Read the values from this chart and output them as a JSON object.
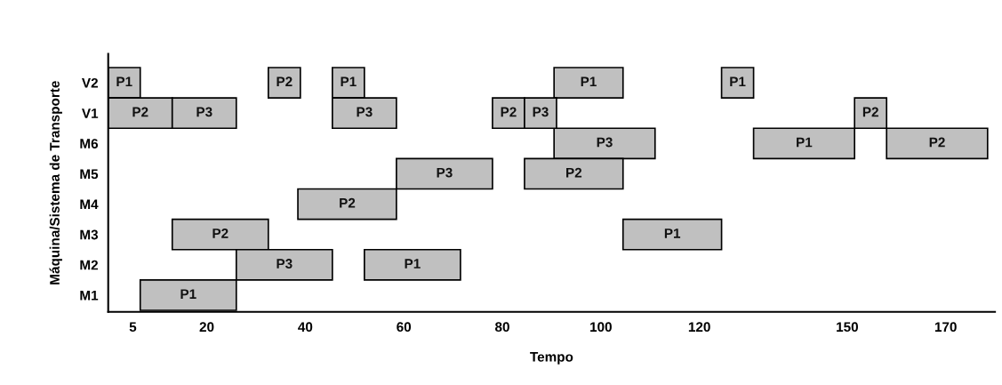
{
  "chart_data": {
    "type": "bar",
    "orientation": "horizontal",
    "xlabel": "Tempo",
    "ylabel": "Máquina/Sistema de Transporte",
    "categories": [
      "V2",
      "V1",
      "M6",
      "M5",
      "M4",
      "M3",
      "M2",
      "M1"
    ],
    "xlim": [
      0,
      180
    ],
    "xticks": [
      5,
      20,
      40,
      60,
      80,
      100,
      120,
      150,
      170
    ],
    "grid": false,
    "series": [
      {
        "color": "#c0c0c0",
        "base": [
          0,
          0,
          90.5,
          58.5,
          38.5,
          13,
          26,
          6.5
        ],
        "values": [
          6.5,
          13,
          20.5,
          19.5,
          20,
          19.5,
          19.5,
          19.5
        ],
        "value_labels": [
          "P1",
          "P2",
          "P3",
          "P3",
          "P2",
          "P2",
          "P3",
          "P1"
        ]
      },
      {
        "color": "#c0c0c0",
        "base": [
          32.5,
          13,
          131,
          84.5,
          null,
          104.5,
          52,
          null
        ],
        "values": [
          6.5,
          13,
          20.5,
          20,
          null,
          20,
          19.5,
          null
        ],
        "value_labels": [
          "P2",
          "P3",
          "P1",
          "P2",
          null,
          "P1",
          "P1",
          null
        ]
      },
      {
        "color": "#c0c0c0",
        "base": [
          45.5,
          45.5,
          158,
          null,
          null,
          null,
          null,
          null
        ],
        "values": [
          6.5,
          13,
          20.5,
          null,
          null,
          null,
          null,
          null
        ],
        "value_labels": [
          "P1",
          "P3",
          "P2",
          null,
          null,
          null,
          null,
          null
        ]
      },
      {
        "color": "#c0c0c0",
        "base": [
          90.5,
          78,
          null,
          null,
          null,
          null,
          null,
          null
        ],
        "values": [
          14,
          6.5,
          null,
          null,
          null,
          null,
          null,
          null
        ],
        "value_labels": [
          "P1",
          "P2",
          null,
          null,
          null,
          null,
          null,
          null
        ]
      },
      {
        "color": "#c0c0c0",
        "base": [
          124.5,
          84.5,
          null,
          null,
          null,
          null,
          null,
          null
        ],
        "values": [
          6.5,
          6.5,
          null,
          null,
          null,
          null,
          null,
          null
        ],
        "value_labels": [
          "P1",
          "P3",
          null,
          null,
          null,
          null,
          null,
          null
        ]
      },
      {
        "color": "#c0c0c0",
        "base": [
          null,
          151.5,
          null,
          null,
          null,
          null,
          null,
          null
        ],
        "values": [
          null,
          6.5,
          null,
          null,
          null,
          null,
          null,
          null
        ],
        "value_labels": [
          null,
          "P2",
          null,
          null,
          null,
          null,
          null,
          null
        ]
      }
    ]
  }
}
